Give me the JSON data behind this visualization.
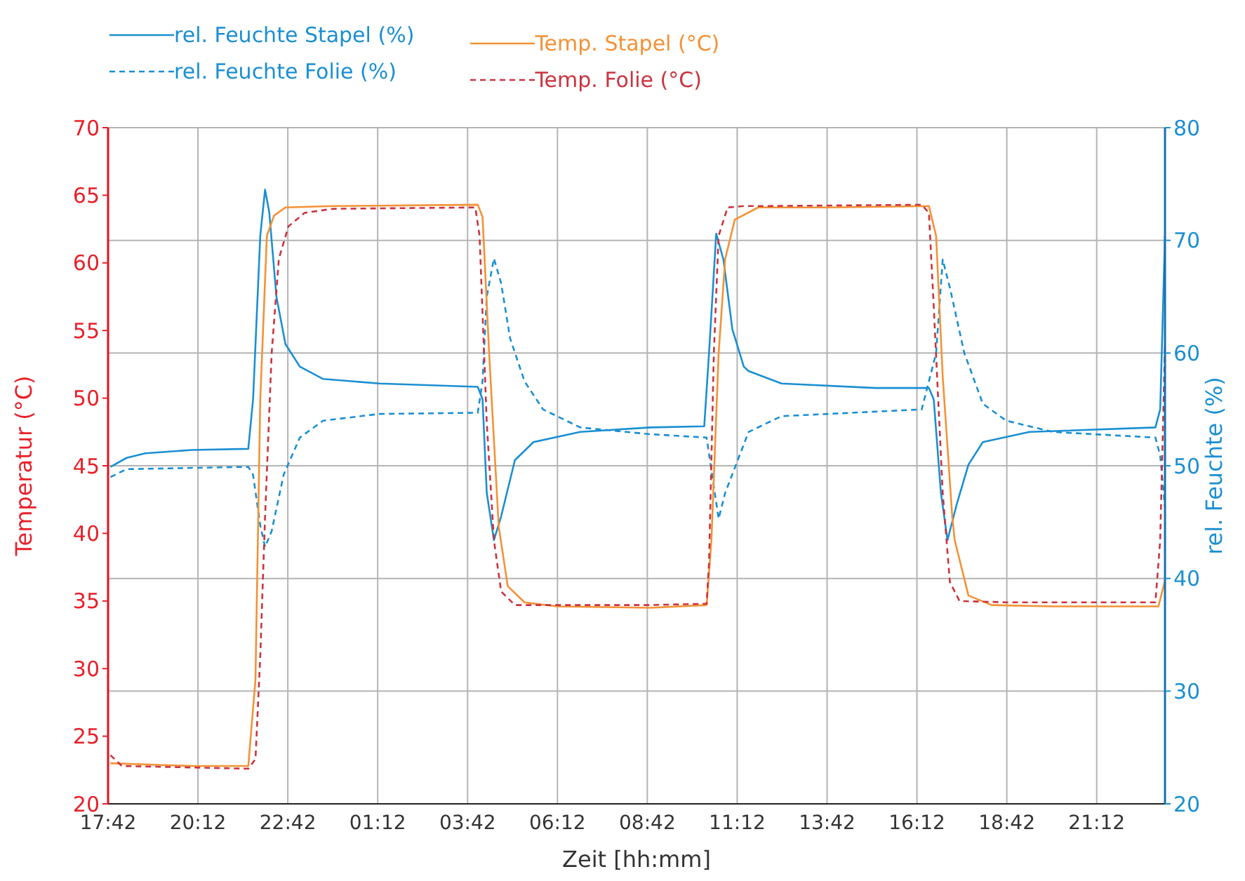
{
  "chart_data": {
    "type": "line",
    "xlabel": "Zeit [hh:mm]",
    "ylabel": "Temperatur (°C)",
    "y2label": "rel. Feuchte (%)",
    "legend": "top",
    "grid": true,
    "xlim": [
      "--01-01T17:42",
      "--01-02T23:06"
    ],
    "xticks": [
      {
        "value": "--01-01T17:42",
        "label": "17:42"
      },
      {
        "value": "--01-01T20:12",
        "label": "20:12"
      },
      {
        "value": "--01-01T22:42",
        "label": "22:42"
      },
      {
        "value": "--01-02T01:12",
        "label": "01:12"
      },
      {
        "value": "--01-02T03:42",
        "label": "03:42"
      },
      {
        "value": "--01-02T06:12",
        "label": "06:12"
      },
      {
        "value": "--01-02T08:42",
        "label": "08:42"
      },
      {
        "value": "--01-02T11:12",
        "label": "11:12"
      },
      {
        "value": "--01-02T13:42",
        "label": "13:42"
      },
      {
        "value": "--01-02T16:12",
        "label": "16:12"
      },
      {
        "value": "--01-02T18:42",
        "label": "18:42"
      },
      {
        "value": "--01-02T21:12",
        "label": "21:12"
      }
    ],
    "ylim": [
      20,
      70
    ],
    "yticks": [
      20,
      25,
      30,
      35,
      40,
      45,
      50,
      55,
      60,
      65,
      70
    ],
    "y2lim": [
      20,
      80
    ],
    "y2ticks": [
      20,
      30,
      40,
      50,
      60,
      70,
      80
    ],
    "series": [
      {
        "name": "rel. Feuchte Stapel (%)",
        "color": "#1b8fd2",
        "axis": "y2",
        "line_style": "solid",
        "x": [
          "--01-01T17:46",
          "--01-01T18:13",
          "--01-01T18:44",
          "--01-01T20:02",
          "--01-01T21:36",
          "--01-01T21:44",
          "--01-01T21:56",
          "--01-01T22:04",
          "--01-01T22:11",
          "--01-01T22:23",
          "--01-01T22:38",
          "--01-01T23:02",
          "--01-01T23:41",
          "--01-02T01:15",
          "--01-02T03:59",
          "--01-02T04:07",
          "--01-02T04:14",
          "--01-02T04:26",
          "--01-02T04:38",
          "--01-02T05:01",
          "--01-02T05:32",
          "--01-02T06:50",
          "--01-02T08:47",
          "--01-02T10:17",
          "--01-02T10:25",
          "--01-02T10:37",
          "--01-02T10:49",
          "--01-02T11:04",
          "--01-02T11:23",
          "--01-02T11:31",
          "--01-02T12:26",
          "--01-02T15:02",
          "--01-02T16:32",
          "--01-02T16:40",
          "--01-02T16:52",
          "--01-02T17:03",
          "--01-02T17:19",
          "--01-02T17:38",
          "--01-02T18:02",
          "--01-02T19:20",
          "--01-02T22:50",
          "--01-02T22:58",
          "--01-02T23:06"
        ],
        "values": [
          49.9,
          50.7,
          51.1,
          51.4,
          51.5,
          55.9,
          70.4,
          74.5,
          72.5,
          65.0,
          60.8,
          58.8,
          57.7,
          57.3,
          57.0,
          55.9,
          47.6,
          43.4,
          45.5,
          50.5,
          52.1,
          53.0,
          53.4,
          53.5,
          60.0,
          70.6,
          68.3,
          62.1,
          58.8,
          58.4,
          57.3,
          56.9,
          56.9,
          55.9,
          47.6,
          43.4,
          46.7,
          50.1,
          52.1,
          53.0,
          53.4,
          55.0,
          70.4
        ]
      },
      {
        "name": "rel. Feuchte Folie (%)",
        "color": "#1b8fd2",
        "axis": "y2",
        "line_style": "dashed",
        "x": [
          "--01-01T17:46",
          "--01-01T18:13",
          "--01-01T21:36",
          "--01-01T21:44",
          "--01-01T21:56",
          "--01-01T22:04",
          "--01-01T22:15",
          "--01-01T22:35",
          "--01-01T23:02",
          "--01-01T23:41",
          "--01-02T01:15",
          "--01-02T03:59",
          "--01-02T04:07",
          "--01-02T04:14",
          "--01-02T04:26",
          "--01-02T04:38",
          "--01-02T04:53",
          "--01-02T05:17",
          "--01-02T05:48",
          "--01-02T06:50",
          "--01-02T08:47",
          "--01-02T10:21",
          "--01-02T10:29",
          "--01-02T10:41",
          "--01-02T10:52",
          "--01-02T11:31",
          "--01-02T12:26",
          "--01-02T15:02",
          "--01-02T16:20",
          "--01-02T16:44",
          "--01-02T16:55",
          "--01-02T17:07",
          "--01-02T17:31",
          "--01-02T18:02",
          "--01-02T18:41",
          "--01-02T19:59",
          "--01-02T22:50",
          "--01-02T22:58",
          "--01-02T23:06"
        ],
        "values": [
          49.0,
          49.7,
          49.9,
          49.2,
          44.7,
          42.8,
          44.2,
          49.2,
          52.5,
          54.0,
          54.6,
          54.7,
          57.5,
          65.0,
          68.4,
          66.2,
          61.3,
          57.5,
          55.0,
          53.4,
          52.8,
          52.5,
          49.6,
          45.3,
          47.6,
          53.0,
          54.4,
          54.8,
          55.0,
          60.0,
          68.3,
          65.8,
          60.0,
          55.5,
          54.0,
          53.0,
          52.5,
          50.9,
          46.3
        ]
      },
      {
        "name": "Temp. Stapel (°C)",
        "color": "#f39236",
        "axis": "y",
        "line_style": "solid",
        "x": [
          "--01-01T17:46",
          "--01-01T20:02",
          "--01-01T21:36",
          "--01-01T21:48",
          "--01-01T21:56",
          "--01-01T22:07",
          "--01-01T22:19",
          "--01-01T22:38",
          "--01-01T23:57",
          "--01-02T03:59",
          "--01-02T04:07",
          "--01-02T04:18",
          "--01-02T04:34",
          "--01-02T04:49",
          "--01-02T05:17",
          "--01-02T06:11",
          "--01-02T08:47",
          "--01-02T10:21",
          "--01-02T10:29",
          "--01-02T10:41",
          "--01-02T10:52",
          "--01-02T11:08",
          "--01-02T11:47",
          "--01-02T13:44",
          "--01-02T16:32",
          "--01-02T16:44",
          "--01-02T16:55",
          "--01-02T17:11",
          "--01-02T17:15",
          "--01-02T17:38",
          "--01-02T18:17",
          "--01-02T19:59",
          "--01-02T22:55",
          "--01-02T23:06"
        ],
        "values": [
          23.0,
          22.8,
          22.8,
          29.2,
          49.9,
          62.0,
          63.5,
          64.1,
          64.2,
          64.3,
          63.4,
          53.3,
          40.5,
          36.1,
          34.9,
          34.6,
          34.5,
          34.7,
          39.5,
          53.3,
          60.3,
          63.2,
          64.1,
          64.1,
          64.2,
          62.0,
          51.6,
          41.2,
          39.5,
          35.4,
          34.7,
          34.6,
          34.6,
          36.5
        ]
      },
      {
        "name": "Temp. Folie (°C)",
        "color": "#c9343f",
        "axis": "y",
        "line_style": "dashed",
        "x": [
          "--01-01T17:46",
          "--01-01T18:05",
          "--01-01T21:36",
          "--01-01T21:48",
          "--01-01T21:56",
          "--01-01T22:04",
          "--01-01T22:15",
          "--01-01T22:27",
          "--01-01T22:43",
          "--01-01T23:10",
          "--01-01T23:57",
          "--01-02T03:55",
          "--01-02T04:02",
          "--01-02T04:14",
          "--01-02T04:26",
          "--01-02T04:38",
          "--01-02T05:01",
          "--01-02T08:47",
          "--01-02T10:21",
          "--01-02T10:25",
          "--01-02T10:33",
          "--01-02T10:41",
          "--01-02T10:56",
          "--01-02T11:23",
          "--01-02T11:47",
          "--01-02T16:20",
          "--01-02T16:32",
          "--01-02T16:40",
          "--01-02T16:55",
          "--01-02T17:07",
          "--01-02T17:23",
          "--01-02T18:41",
          "--01-02T22:50",
          "--01-02T22:58",
          "--01-02T23:06"
        ],
        "values": [
          23.6,
          22.8,
          22.6,
          23.3,
          30.9,
          41.2,
          53.3,
          60.3,
          62.7,
          63.7,
          64.0,
          64.1,
          62.0,
          48.2,
          39.5,
          35.7,
          34.7,
          34.7,
          34.8,
          37.8,
          53.3,
          62.0,
          64.1,
          64.2,
          64.2,
          64.3,
          63.7,
          56.8,
          43.0,
          36.4,
          35.0,
          34.9,
          34.9,
          39.5,
          54.0
        ]
      }
    ]
  }
}
